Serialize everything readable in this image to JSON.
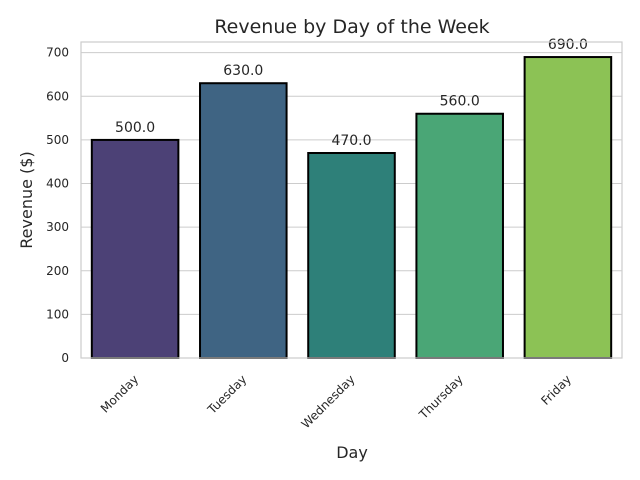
{
  "chart_data": {
    "type": "bar",
    "title": "Revenue by Day of the Week",
    "xlabel": "Day",
    "ylabel": "Revenue ($)",
    "categories": [
      "Monday",
      "Tuesday",
      "Wednesday",
      "Thursday",
      "Friday"
    ],
    "values": [
      500.0,
      630.0,
      470.0,
      560.0,
      690.0
    ],
    "data_labels": [
      "500.0",
      "630.0",
      "470.0",
      "560.0",
      "690.0"
    ],
    "ylim": [
      0,
      724.5
    ],
    "yticks": [
      0,
      100,
      200,
      300,
      400,
      500,
      600,
      700
    ],
    "colors": [
      "#4c4176",
      "#3f6483",
      "#2e8079",
      "#4aa676",
      "#8cc255"
    ],
    "grid": true,
    "legend": "none"
  }
}
